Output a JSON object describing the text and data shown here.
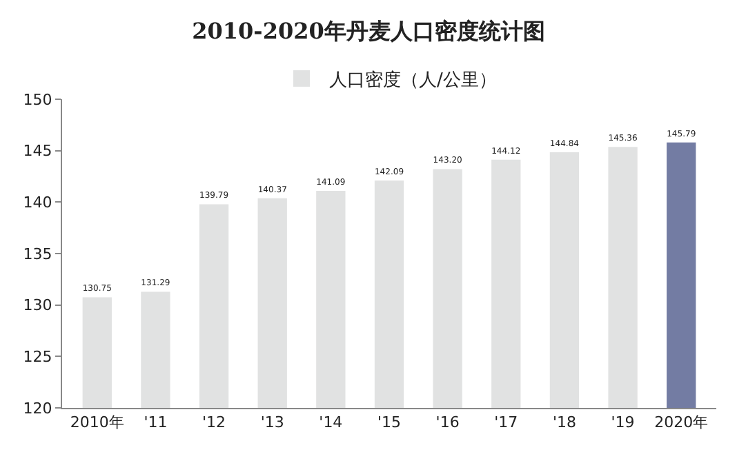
{
  "chart_data": {
    "type": "bar",
    "title": "2010-2020年丹麦人口密度统计图",
    "categories": [
      "2010年",
      "'11",
      "'12",
      "'13",
      "'14",
      "'15",
      "'16",
      "'17",
      "'18",
      "'19",
      "2020年"
    ],
    "series": [
      {
        "name": "人口密度（人/公里）",
        "values": [
          130.75,
          131.29,
          139.79,
          140.37,
          141.09,
          142.09,
          143.2,
          144.12,
          144.84,
          145.36,
          145.79
        ],
        "value_labels": [
          "130.75",
          "131.29",
          "139.79",
          "140.37",
          "141.09",
          "142.09",
          "143.20",
          "144.12",
          "144.84",
          "145.36",
          "145.79"
        ],
        "colors": [
          "#e1e2e2",
          "#e1e2e2",
          "#e1e2e2",
          "#e1e2e2",
          "#e1e2e2",
          "#e1e2e2",
          "#e1e2e2",
          "#e1e2e2",
          "#e1e2e2",
          "#e1e2e2",
          "#737ca3"
        ]
      }
    ],
    "ylim": [
      120,
      150
    ],
    "yticks": [
      120,
      125,
      130,
      135,
      140,
      145,
      150
    ],
    "grid": false,
    "legend": "top"
  }
}
